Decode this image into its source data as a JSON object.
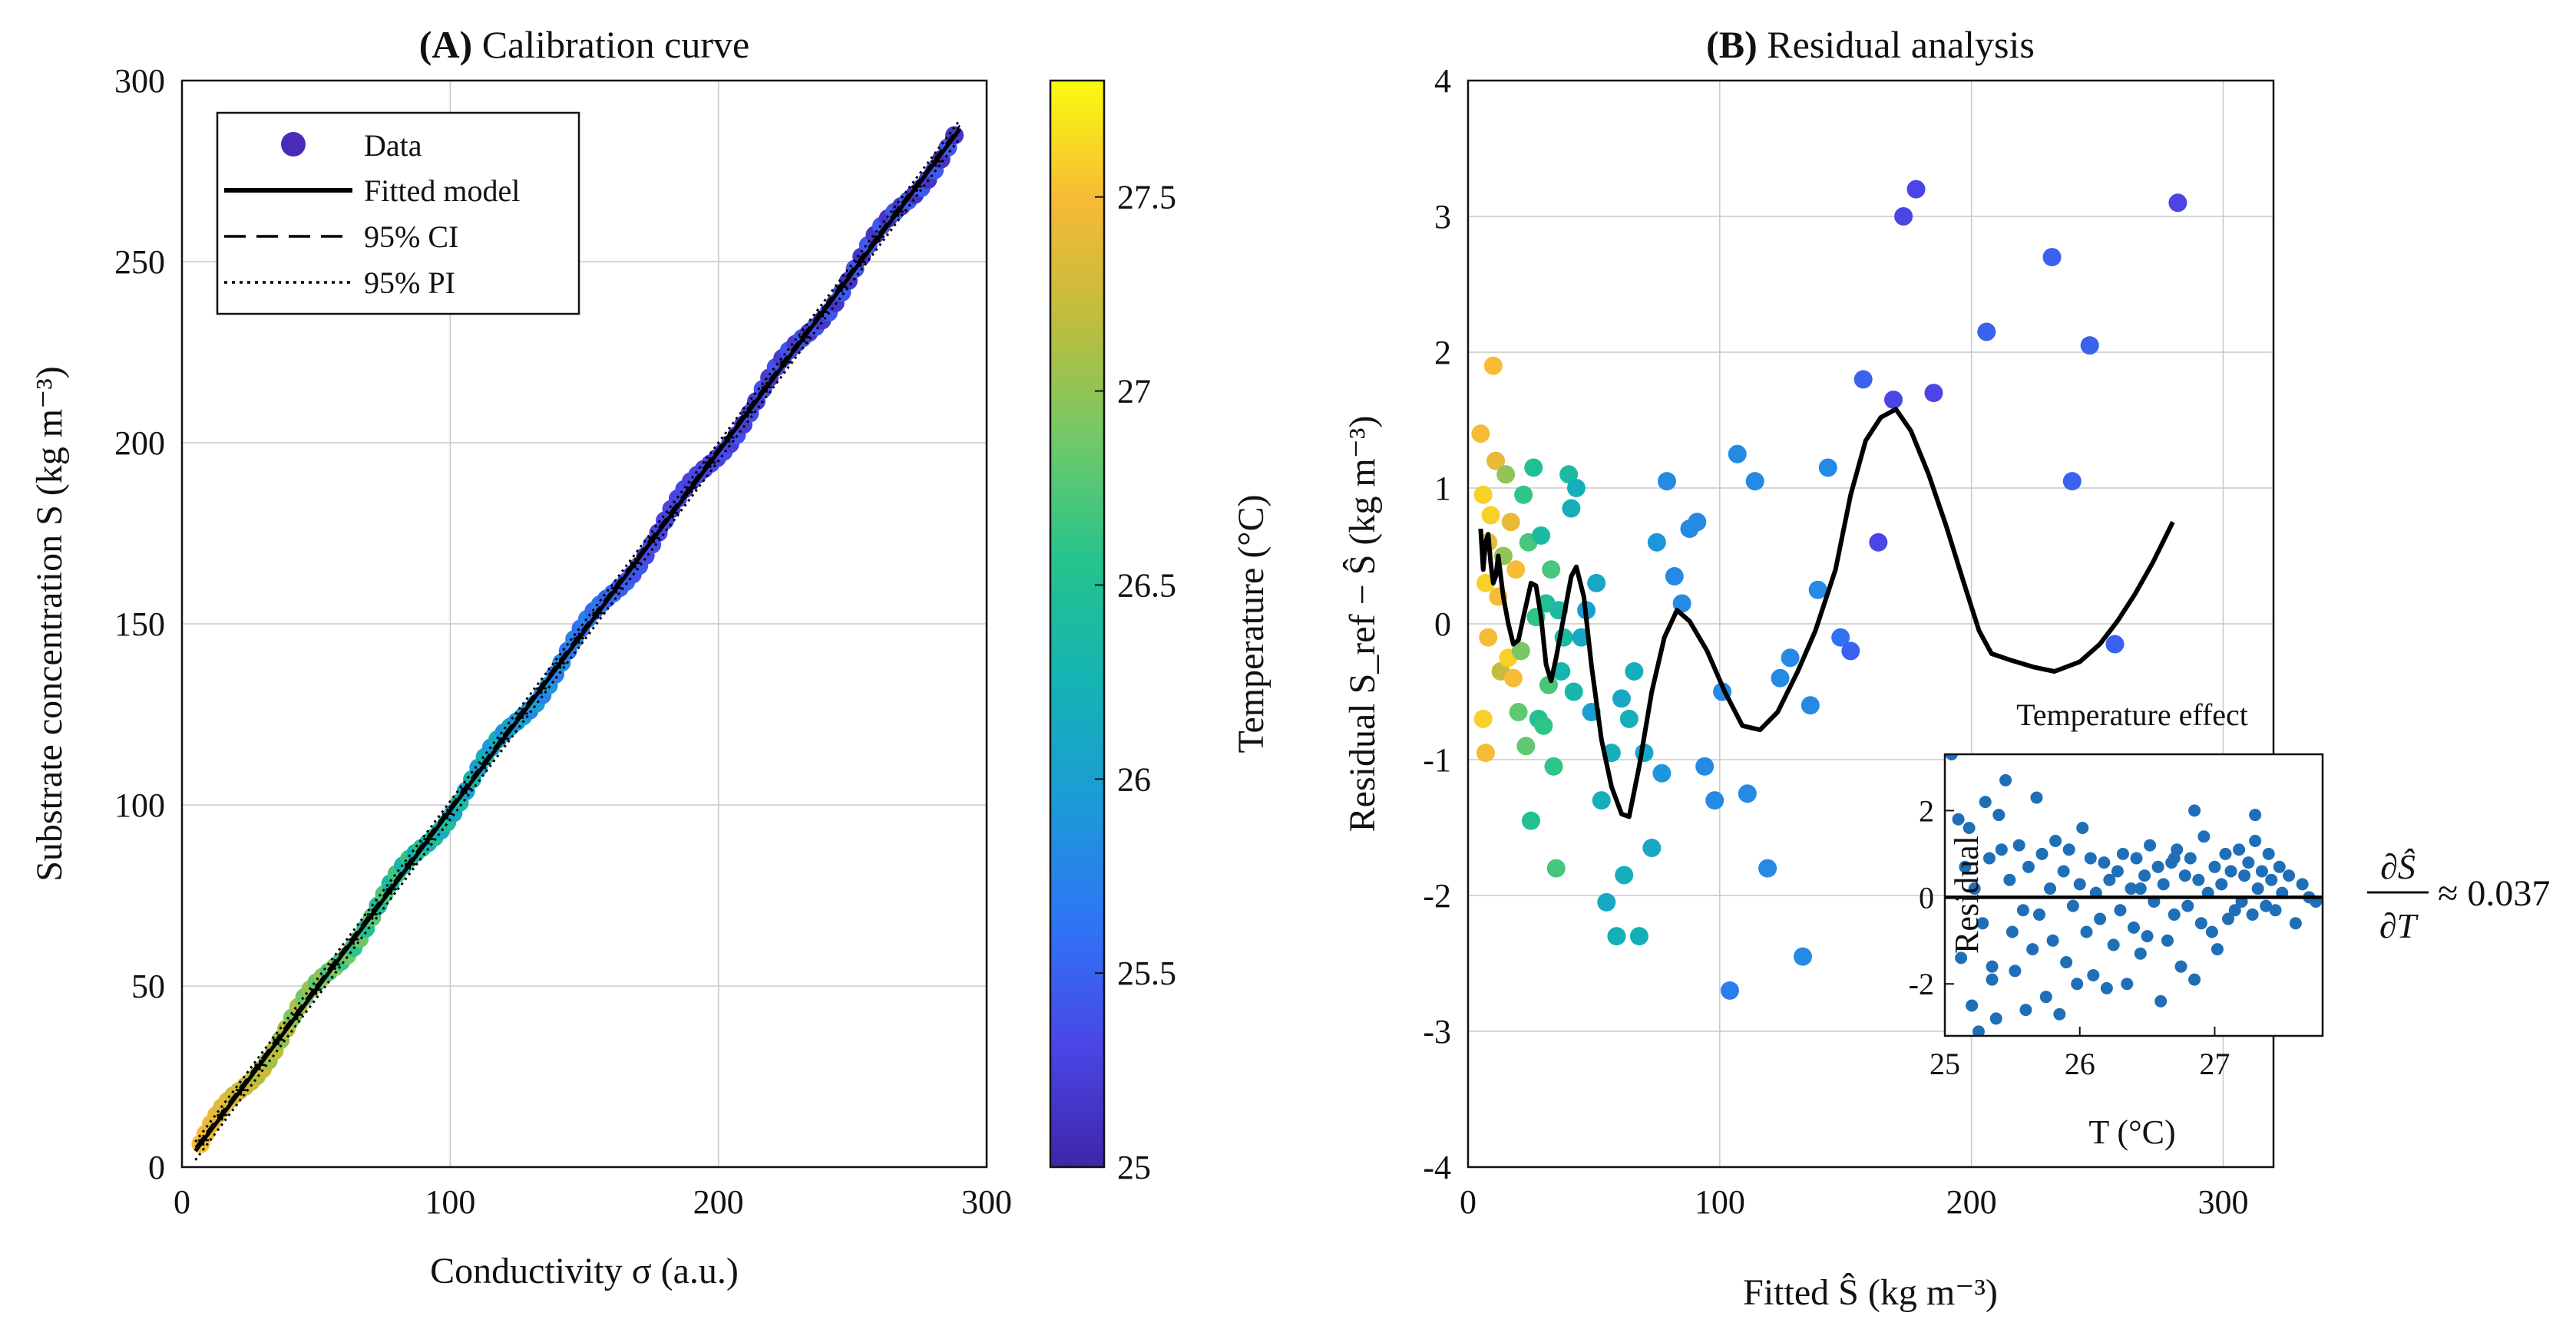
{
  "colors": {
    "axis": "#111111",
    "grid": "#c8c8c8",
    "fit_line": "#000000",
    "inset_points": "#1f6fb8",
    "legend_marker": "#4a2bb7"
  },
  "colormap_stops": [
    "#3e26a8",
    "#4a46e6",
    "#2f74f5",
    "#1c9ad8",
    "#14b3b4",
    "#24c38d",
    "#6fc969",
    "#bebd3c",
    "#f6ba36",
    "#f9fb0e"
  ],
  "chart_data": [
    {
      "id": "A",
      "type": "scatter",
      "title_tag": "(A)",
      "title": "Calibration curve",
      "xlabel": "Conductivity σ (a.u.)",
      "ylabel": "Substrate concentration S (kg m⁻³)",
      "xlim": [
        0,
        300
      ],
      "ylim": [
        0,
        300
      ],
      "xticks": [
        0,
        100,
        200,
        300
      ],
      "yticks": [
        0,
        50,
        100,
        150,
        200,
        250,
        300
      ],
      "grid": true,
      "legend_position": "top-left",
      "legend": [
        "Data",
        "Fitted model",
        "95% CI",
        "95% PI"
      ],
      "fit": {
        "slope": 0.99,
        "intercept": -0.5
      },
      "n_points": 120,
      "sigma_range": [
        7,
        288
      ],
      "temperature_range_c": [
        25.3,
        27.5
      ],
      "colorbar": {
        "label": "Temperature (°C)",
        "range": [
          25,
          27.8
        ],
        "ticks": [
          25,
          25.5,
          26,
          26.5,
          27,
          27.5
        ]
      }
    },
    {
      "id": "B",
      "type": "scatter",
      "title_tag": "(B)",
      "title": "Residual analysis",
      "xlabel": "Fitted Ŝ (kg m⁻³)",
      "ylabel": "Residual S_ref − Ŝ (kg m⁻³)",
      "xlim": [
        0,
        320
      ],
      "ylim": [
        -4,
        4
      ],
      "xticks": [
        0,
        100,
        200,
        300
      ],
      "yticks": [
        -4,
        -3,
        -2,
        -1,
        0,
        1,
        2,
        3,
        4
      ],
      "grid": true,
      "points": [
        {
          "x": 5,
          "y": 1.4,
          "t": 27.5
        },
        {
          "x": 6,
          "y": 0.95,
          "t": 27.6
        },
        {
          "x": 7,
          "y": 0.3,
          "t": 27.6
        },
        {
          "x": 8,
          "y": -0.1,
          "t": 27.5
        },
        {
          "x": 6,
          "y": -0.7,
          "t": 27.6
        },
        {
          "x": 7,
          "y": -0.95,
          "t": 27.5
        },
        {
          "x": 8,
          "y": 0.6,
          "t": 27.4
        },
        {
          "x": 9,
          "y": 0.8,
          "t": 27.6
        },
        {
          "x": 10,
          "y": 1.9,
          "t": 27.5
        },
        {
          "x": 11,
          "y": 1.2,
          "t": 27.4
        },
        {
          "x": 12,
          "y": 0.2,
          "t": 27.5
        },
        {
          "x": 13,
          "y": -0.35,
          "t": 27.2
        },
        {
          "x": 14,
          "y": 0.5,
          "t": 27.0
        },
        {
          "x": 15,
          "y": 1.1,
          "t": 27.0
        },
        {
          "x": 16,
          "y": -0.25,
          "t": 27.6
        },
        {
          "x": 17,
          "y": 0.75,
          "t": 27.4
        },
        {
          "x": 18,
          "y": -0.4,
          "t": 27.5
        },
        {
          "x": 19,
          "y": 0.4,
          "t": 27.5
        },
        {
          "x": 20,
          "y": -0.65,
          "t": 26.8
        },
        {
          "x": 21,
          "y": -0.2,
          "t": 26.9
        },
        {
          "x": 22,
          "y": 0.95,
          "t": 26.6
        },
        {
          "x": 23,
          "y": -0.9,
          "t": 26.8
        },
        {
          "x": 24,
          "y": 0.6,
          "t": 26.7
        },
        {
          "x": 25,
          "y": -1.45,
          "t": 26.5
        },
        {
          "x": 26,
          "y": 1.15,
          "t": 26.5
        },
        {
          "x": 27,
          "y": 0.05,
          "t": 26.6
        },
        {
          "x": 28,
          "y": -0.7,
          "t": 26.5
        },
        {
          "x": 29,
          "y": 0.65,
          "t": 26.4
        },
        {
          "x": 30,
          "y": -0.75,
          "t": 26.6
        },
        {
          "x": 31,
          "y": 0.15,
          "t": 26.5
        },
        {
          "x": 32,
          "y": -0.45,
          "t": 26.7
        },
        {
          "x": 33,
          "y": 0.4,
          "t": 26.7
        },
        {
          "x": 34,
          "y": -1.05,
          "t": 26.6
        },
        {
          "x": 35,
          "y": -1.8,
          "t": 26.7
        },
        {
          "x": 36,
          "y": 0.1,
          "t": 26.4
        },
        {
          "x": 37,
          "y": -0.35,
          "t": 26.3
        },
        {
          "x": 38,
          "y": -0.1,
          "t": 26.4
        },
        {
          "x": 40,
          "y": 1.1,
          "t": 26.4
        },
        {
          "x": 41,
          "y": 0.85,
          "t": 26.2
        },
        {
          "x": 42,
          "y": -0.5,
          "t": 26.3
        },
        {
          "x": 43,
          "y": 1.0,
          "t": 26.2
        },
        {
          "x": 45,
          "y": -0.1,
          "t": 26.1
        },
        {
          "x": 47,
          "y": 0.1,
          "t": 26.0
        },
        {
          "x": 49,
          "y": -0.65,
          "t": 26.0
        },
        {
          "x": 51,
          "y": 0.3,
          "t": 26.1
        },
        {
          "x": 53,
          "y": -1.3,
          "t": 26.2
        },
        {
          "x": 55,
          "y": -2.05,
          "t": 26.1
        },
        {
          "x": 57,
          "y": -0.95,
          "t": 26.2
        },
        {
          "x": 59,
          "y": -2.3,
          "t": 26.2
        },
        {
          "x": 61,
          "y": -0.55,
          "t": 26.1
        },
        {
          "x": 62,
          "y": -1.85,
          "t": 26.2
        },
        {
          "x": 64,
          "y": -0.7,
          "t": 26.2
        },
        {
          "x": 66,
          "y": -0.35,
          "t": 26.2
        },
        {
          "x": 68,
          "y": -2.3,
          "t": 26.2
        },
        {
          "x": 70,
          "y": -0.95,
          "t": 26.1
        },
        {
          "x": 73,
          "y": -1.65,
          "t": 26.1
        },
        {
          "x": 75,
          "y": 0.6,
          "t": 25.9
        },
        {
          "x": 77,
          "y": -1.1,
          "t": 25.9
        },
        {
          "x": 79,
          "y": 1.05,
          "t": 25.8
        },
        {
          "x": 82,
          "y": 0.35,
          "t": 25.8
        },
        {
          "x": 85,
          "y": 0.15,
          "t": 25.8
        },
        {
          "x": 88,
          "y": 0.7,
          "t": 25.8
        },
        {
          "x": 91,
          "y": 0.75,
          "t": 25.8
        },
        {
          "x": 94,
          "y": -1.05,
          "t": 25.8
        },
        {
          "x": 98,
          "y": -1.3,
          "t": 25.8
        },
        {
          "x": 101,
          "y": -0.5,
          "t": 25.8
        },
        {
          "x": 104,
          "y": -2.7,
          "t": 25.7
        },
        {
          "x": 107,
          "y": 1.25,
          "t": 25.8
        },
        {
          "x": 111,
          "y": -1.25,
          "t": 25.8
        },
        {
          "x": 114,
          "y": 1.05,
          "t": 25.8
        },
        {
          "x": 119,
          "y": -1.8,
          "t": 25.8
        },
        {
          "x": 124,
          "y": -0.4,
          "t": 25.8
        },
        {
          "x": 128,
          "y": -0.25,
          "t": 25.8
        },
        {
          "x": 133,
          "y": -2.45,
          "t": 25.8
        },
        {
          "x": 136,
          "y": -0.6,
          "t": 25.8
        },
        {
          "x": 139,
          "y": 0.25,
          "t": 25.8
        },
        {
          "x": 143,
          "y": 1.15,
          "t": 25.8
        },
        {
          "x": 148,
          "y": -0.1,
          "t": 25.6
        },
        {
          "x": 152,
          "y": -0.2,
          "t": 25.5
        },
        {
          "x": 157,
          "y": 1.8,
          "t": 25.5
        },
        {
          "x": 163,
          "y": 0.6,
          "t": 25.3
        },
        {
          "x": 169,
          "y": 1.65,
          "t": 25.3
        },
        {
          "x": 173,
          "y": 3.0,
          "t": 25.3
        },
        {
          "x": 178,
          "y": 3.2,
          "t": 25.3
        },
        {
          "x": 185,
          "y": 1.7,
          "t": 25.3
        },
        {
          "x": 206,
          "y": 2.15,
          "t": 25.5
        },
        {
          "x": 232,
          "y": 2.7,
          "t": 25.5
        },
        {
          "x": 240,
          "y": 1.05,
          "t": 25.5
        },
        {
          "x": 247,
          "y": 2.05,
          "t": 25.5
        },
        {
          "x": 257,
          "y": -0.15,
          "t": 25.5
        },
        {
          "x": 282,
          "y": 3.1,
          "t": 25.3
        }
      ],
      "trend_line": [
        [
          5,
          0.7
        ],
        [
          6,
          0.4
        ],
        [
          7,
          0.6
        ],
        [
          8,
          0.66
        ],
        [
          9,
          0.45
        ],
        [
          10,
          0.3
        ],
        [
          11,
          0.35
        ],
        [
          12,
          0.5
        ],
        [
          14,
          0.2
        ],
        [
          16,
          0.0
        ],
        [
          18,
          -0.15
        ],
        [
          20,
          -0.12
        ],
        [
          22,
          0.05
        ],
        [
          25,
          0.3
        ],
        [
          27,
          0.28
        ],
        [
          29,
          0.05
        ],
        [
          31,
          -0.3
        ],
        [
          33,
          -0.42
        ],
        [
          35,
          -0.25
        ],
        [
          38,
          0.05
        ],
        [
          41,
          0.35
        ],
        [
          43,
          0.42
        ],
        [
          46,
          0.2
        ],
        [
          49,
          -0.3
        ],
        [
          53,
          -0.85
        ],
        [
          57,
          -1.2
        ],
        [
          61,
          -1.4
        ],
        [
          64,
          -1.42
        ],
        [
          68,
          -1.05
        ],
        [
          73,
          -0.5
        ],
        [
          78,
          -0.1
        ],
        [
          83,
          0.1
        ],
        [
          88,
          0.02
        ],
        [
          95,
          -0.2
        ],
        [
          102,
          -0.5
        ],
        [
          109,
          -0.75
        ],
        [
          116,
          -0.78
        ],
        [
          123,
          -0.65
        ],
        [
          131,
          -0.35
        ],
        [
          138,
          -0.05
        ],
        [
          146,
          0.4
        ],
        [
          152,
          0.95
        ],
        [
          158,
          1.35
        ],
        [
          164,
          1.52
        ],
        [
          170,
          1.58
        ],
        [
          176,
          1.42
        ],
        [
          183,
          1.1
        ],
        [
          190,
          0.72
        ],
        [
          197,
          0.3
        ],
        [
          203,
          -0.05
        ],
        [
          208,
          -0.22
        ],
        [
          216,
          -0.27
        ],
        [
          225,
          -0.32
        ],
        [
          233,
          -0.35
        ],
        [
          243,
          -0.28
        ],
        [
          251,
          -0.15
        ],
        [
          258,
          0.02
        ],
        [
          265,
          0.22
        ],
        [
          272,
          0.45
        ],
        [
          280,
          0.75
        ]
      ],
      "annotation": "≈ 0.037",
      "inset": {
        "type": "scatter",
        "title": "Temperature effect",
        "xlabel": "T (°C)",
        "ylabel": "Residual",
        "xlim": [
          25,
          27.8
        ],
        "ylim": [
          -3.2,
          3.3
        ],
        "xticks": [
          25,
          26,
          27
        ],
        "yticks": [
          -2,
          0,
          2
        ],
        "fit_level": 0,
        "points": [
          [
            25.05,
            3.3
          ],
          [
            25.1,
            1.8
          ],
          [
            25.15,
            0.7
          ],
          [
            25.2,
            -2.5
          ],
          [
            25.25,
            -3.1
          ],
          [
            25.3,
            2.2
          ],
          [
            25.35,
            -1.6
          ],
          [
            25.4,
            1.9
          ],
          [
            25.45,
            2.7
          ],
          [
            25.5,
            -0.8
          ],
          [
            25.12,
            -1.4
          ],
          [
            25.18,
            1.6
          ],
          [
            25.22,
            0.2
          ],
          [
            25.28,
            -0.6
          ],
          [
            25.33,
            0.9
          ],
          [
            25.38,
            -2.8
          ],
          [
            25.42,
            1.1
          ],
          [
            25.48,
            0.4
          ],
          [
            25.52,
            -1.7
          ],
          [
            25.55,
            1.2
          ],
          [
            25.58,
            -0.3
          ],
          [
            25.6,
            -2.6
          ],
          [
            25.62,
            0.7
          ],
          [
            25.65,
            -1.2
          ],
          [
            25.68,
            2.3
          ],
          [
            25.7,
            -0.4
          ],
          [
            25.72,
            1.0
          ],
          [
            25.75,
            -2.3
          ],
          [
            25.78,
            0.2
          ],
          [
            25.8,
            -1.0
          ],
          [
            25.82,
            1.3
          ],
          [
            25.85,
            -2.7
          ],
          [
            25.88,
            0.6
          ],
          [
            25.9,
            -1.5
          ],
          [
            25.92,
            1.1
          ],
          [
            25.95,
            -0.2
          ],
          [
            25.98,
            -2.0
          ],
          [
            26.0,
            0.3
          ],
          [
            26.02,
            1.6
          ],
          [
            26.05,
            -0.8
          ],
          [
            26.08,
            0.9
          ],
          [
            26.1,
            -1.8
          ],
          [
            26.12,
            0.1
          ],
          [
            26.15,
            -0.5
          ],
          [
            26.18,
            0.8
          ],
          [
            26.2,
            -2.1
          ],
          [
            26.22,
            0.4
          ],
          [
            26.25,
            -1.1
          ],
          [
            26.28,
            0.6
          ],
          [
            26.3,
            -0.3
          ],
          [
            26.32,
            1.0
          ],
          [
            26.35,
            -2.0
          ],
          [
            26.38,
            0.2
          ],
          [
            26.4,
            -0.7
          ],
          [
            26.42,
            0.9
          ],
          [
            26.45,
            -1.3
          ],
          [
            26.48,
            0.5
          ],
          [
            26.5,
            -0.9
          ],
          [
            26.52,
            1.2
          ],
          [
            26.55,
            -0.1
          ],
          [
            26.58,
            0.7
          ],
          [
            26.6,
            -2.4
          ],
          [
            26.62,
            0.3
          ],
          [
            26.65,
            -1.0
          ],
          [
            26.68,
            0.8
          ],
          [
            26.7,
            -0.4
          ],
          [
            26.72,
            1.1
          ],
          [
            26.75,
            -1.6
          ],
          [
            26.78,
            0.5
          ],
          [
            26.8,
            -0.2
          ],
          [
            26.82,
            0.9
          ],
          [
            26.85,
            -1.9
          ],
          [
            26.88,
            0.4
          ],
          [
            26.9,
            -0.6
          ],
          [
            26.92,
            1.4
          ],
          [
            26.95,
            0.1
          ],
          [
            26.98,
            -0.8
          ],
          [
            27.0,
            0.7
          ],
          [
            27.02,
            -1.2
          ],
          [
            27.05,
            0.3
          ],
          [
            27.08,
            1.0
          ],
          [
            27.1,
            -0.5
          ],
          [
            27.12,
            0.6
          ],
          [
            27.15,
            -0.3
          ],
          [
            27.18,
            1.1
          ],
          [
            27.2,
            -0.1
          ],
          [
            27.22,
            0.5
          ],
          [
            27.25,
            0.8
          ],
          [
            27.28,
            -0.4
          ],
          [
            27.3,
            1.3
          ],
          [
            27.32,
            0.2
          ],
          [
            27.35,
            0.6
          ],
          [
            27.38,
            -0.2
          ],
          [
            27.4,
            1.0
          ],
          [
            27.42,
            0.4
          ],
          [
            27.45,
            -0.3
          ],
          [
            27.48,
            0.7
          ],
          [
            27.5,
            0.1
          ],
          [
            27.55,
            0.5
          ],
          [
            27.6,
            -0.6
          ],
          [
            27.65,
            0.3
          ],
          [
            27.7,
            0.0
          ],
          [
            27.75,
            -0.1
          ],
          [
            27.3,
            1.9
          ],
          [
            26.85,
            2.0
          ],
          [
            25.35,
            -1.9
          ],
          [
            26.45,
            0.2
          ],
          [
            26.7,
            0.9
          ]
        ]
      }
    }
  ]
}
